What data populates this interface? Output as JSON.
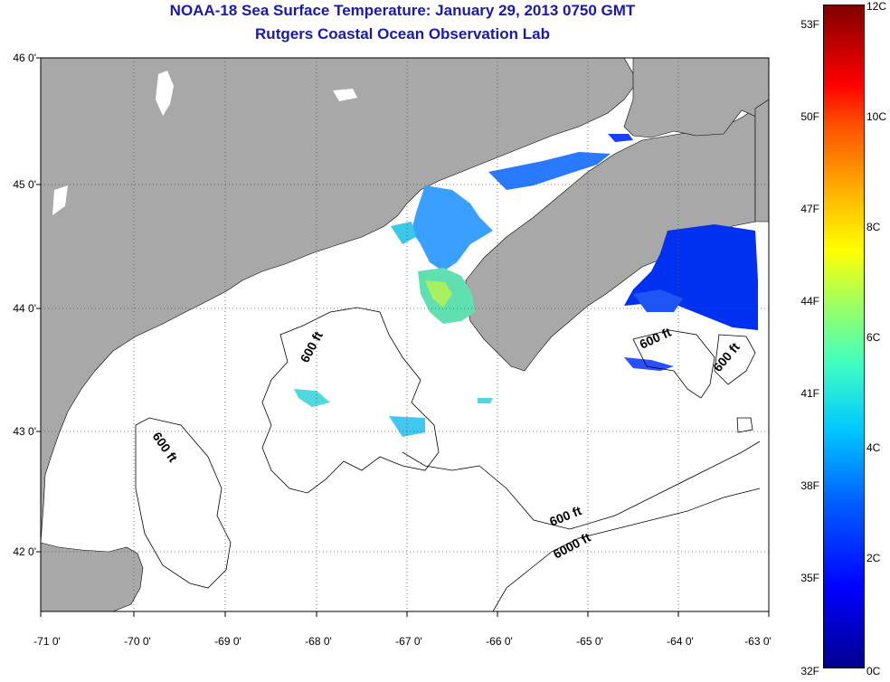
{
  "title": "NOAA-18 Sea Surface Temperature:  January 29, 2013 0750 GMT",
  "subtitle": "Rutgers Coastal Ocean Observation Lab",
  "axes": {
    "y_ticks": [
      "46 0'",
      "45 0'",
      "44 0'",
      "43 0'",
      "42 0'"
    ],
    "x_ticks": [
      "-71 0'",
      "-70 0'",
      "-69 0'",
      "-68 0'",
      "-67 0'",
      "-66 0'",
      "-65 0'",
      "-64 0'",
      "-63 0'"
    ],
    "lat_range": [
      41.5,
      46.0
    ],
    "lon_range": [
      -71.0,
      -63.0
    ],
    "grid": "dotted"
  },
  "contours": [
    {
      "label": "600 ft"
    },
    {
      "label": "600 ft"
    },
    {
      "label": "600 ft"
    },
    {
      "label": "600 ft"
    },
    {
      "label": "600 ft"
    },
    {
      "label": "6000 ft"
    }
  ],
  "colorbar": {
    "fahrenheit_ticks": [
      "53F",
      "50F",
      "47F",
      "44F",
      "41F",
      "38F",
      "35F",
      "32F"
    ],
    "celsius_ticks": [
      "12C",
      "10C",
      "8C",
      "6C",
      "4C",
      "2C",
      "0C"
    ],
    "range_c": [
      0,
      12
    ]
  },
  "colors": {
    "land": "#a8a8a8",
    "ocean_cloud": "#ffffff",
    "title": "#1a1aa8"
  }
}
